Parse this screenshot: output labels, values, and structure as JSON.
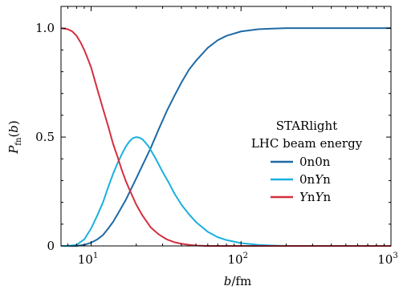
{
  "chart_data": {
    "type": "line",
    "xlabel": "b/fm",
    "ylabel": "P_fn(b)",
    "xscale": "log",
    "xlim": [
      6.3,
      1000
    ],
    "ylim": [
      0,
      1.1
    ],
    "grid": false,
    "legend": {
      "placement": "center-right",
      "title_lines": [
        "STARlight",
        "LHC beam energy"
      ]
    },
    "x_tick_labels": [
      "10",
      "10",
      "10"
    ],
    "x_tick_exponents": [
      "1",
      "2",
      "3"
    ],
    "x_tick_values": [
      10,
      100,
      1000
    ],
    "y_tick_labels": [
      "0",
      "0.5",
      "1.0"
    ],
    "y_tick_values": [
      0,
      0.5,
      1.0
    ],
    "series": [
      {
        "name": "0n0n",
        "color": "#1f6aa5",
        "x": [
          6.3,
          7,
          8,
          9,
          10,
          11,
          12,
          13,
          14,
          15,
          17,
          20,
          22,
          25,
          28,
          32,
          36,
          40,
          45,
          50,
          60,
          70,
          80,
          100,
          130,
          160,
          200,
          300,
          500,
          1000
        ],
        "y": [
          0.0,
          0.0,
          0.0,
          0.005,
          0.015,
          0.03,
          0.05,
          0.08,
          0.11,
          0.145,
          0.21,
          0.31,
          0.37,
          0.45,
          0.53,
          0.62,
          0.69,
          0.75,
          0.81,
          0.85,
          0.91,
          0.945,
          0.965,
          0.985,
          0.995,
          0.998,
          1.0,
          1.0,
          1.0,
          1.0
        ]
      },
      {
        "name": "0nYn",
        "color": "#1ab0de",
        "x": [
          6.3,
          7,
          8,
          9,
          10,
          11,
          12,
          13,
          14,
          15,
          16,
          17,
          18,
          19,
          20,
          21,
          22,
          23,
          24,
          25,
          27,
          30,
          33,
          36,
          40,
          45,
          50,
          60,
          70,
          80,
          100,
          130,
          160,
          200,
          300,
          500,
          1000
        ],
        "y": [
          0.0,
          0.0,
          0.005,
          0.03,
          0.08,
          0.14,
          0.2,
          0.27,
          0.33,
          0.38,
          0.42,
          0.455,
          0.48,
          0.495,
          0.5,
          0.497,
          0.49,
          0.475,
          0.46,
          0.44,
          0.4,
          0.34,
          0.29,
          0.24,
          0.19,
          0.145,
          0.11,
          0.065,
          0.04,
          0.027,
          0.013,
          0.005,
          0.002,
          0.0,
          0.0,
          0.0,
          0.0
        ]
      },
      {
        "name": "YnYn",
        "color": "#d32f3f",
        "x": [
          6.3,
          7,
          7.5,
          8,
          8.5,
          9,
          9.5,
          10,
          11,
          12,
          13,
          14,
          15,
          16,
          17,
          18,
          20,
          22,
          25,
          28,
          32,
          36,
          40,
          45,
          50,
          60,
          70,
          80,
          100,
          130,
          200,
          500,
          1000
        ],
        "y": [
          1.0,
          0.995,
          0.985,
          0.965,
          0.935,
          0.9,
          0.86,
          0.82,
          0.72,
          0.63,
          0.55,
          0.47,
          0.41,
          0.35,
          0.3,
          0.26,
          0.19,
          0.14,
          0.085,
          0.055,
          0.03,
          0.017,
          0.01,
          0.005,
          0.002,
          0.0,
          0.0,
          0.0,
          0.0,
          0.0,
          0.0,
          0.0,
          0.0
        ]
      }
    ]
  }
}
